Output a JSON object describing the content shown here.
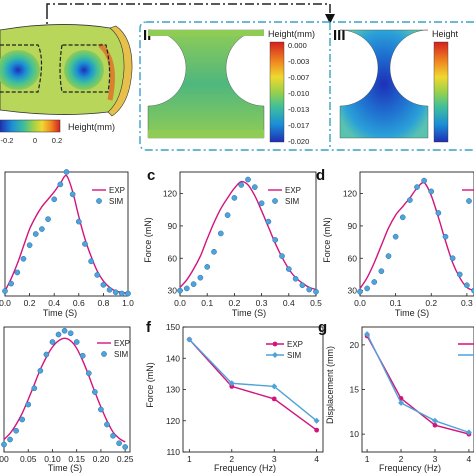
{
  "colors": {
    "exp": "#d4147a",
    "sim": "#4fa3d9",
    "sim_edge": "#1f6fb0",
    "frame": "#3aa0c8"
  },
  "top": {
    "colorbar_h": {
      "label": "Height(mm)",
      "ticks": [
        "-0.2",
        "0",
        "0.2"
      ]
    },
    "panel_II": {
      "numeral": "II",
      "label": "Height(mm)",
      "ticks": [
        "0.000",
        "-0.003",
        "-0.007",
        "-0.010",
        "-0.013",
        "-0.017",
        "-0.020"
      ]
    },
    "panel_III": {
      "numeral": "III",
      "label": "Height"
    }
  },
  "panels": [
    {
      "letter": "",
      "ylabel": "",
      "xlabel": "Time (S)",
      "series": [
        "EXP",
        "SIM"
      ]
    },
    {
      "letter": "c",
      "ylabel": "Force (mN)",
      "xlabel": "Time (S)",
      "series": [
        "EXP",
        "SIM"
      ]
    },
    {
      "letter": "d",
      "ylabel": "Force (mN)",
      "xlabel": "Time (S)",
      "series": [
        "",
        ""
      ]
    },
    {
      "letter": "",
      "ylabel": "",
      "xlabel": "Time (S)",
      "series": [
        "EXP",
        "SIM"
      ]
    },
    {
      "letter": "f",
      "ylabel": "Force (mN)",
      "xlabel": "Frequency (Hz)",
      "series": [
        "EXP",
        "SIM"
      ]
    },
    {
      "letter": "g",
      "ylabel": "Displacement (mm)",
      "xlabel": "Frequency (Hz)",
      "series": [
        "",
        ""
      ]
    }
  ],
  "chart_data": [
    {
      "type": "line",
      "panel": "b",
      "xlabel": "Time (S)",
      "ylabel": "",
      "xticks": [
        0.0,
        0.2,
        0.4,
        0.6,
        0.8,
        1.0
      ],
      "xtick_labels": [
        "0.0",
        "0.2",
        "0.4",
        "0.6",
        "0.8",
        "1.0"
      ],
      "xlim": [
        0.0,
        1.0
      ],
      "ylim": [
        0,
        100
      ],
      "yticks": [],
      "legend": "top-right",
      "series": [
        {
          "name": "EXP",
          "kind": "line",
          "x": [
            0.0,
            0.05,
            0.1,
            0.15,
            0.2,
            0.25,
            0.3,
            0.35,
            0.4,
            0.45,
            0.5,
            0.55,
            0.6,
            0.65,
            0.7,
            0.75,
            0.8,
            0.85,
            0.9,
            0.95,
            1.0
          ],
          "y": [
            4,
            14,
            26,
            40,
            54,
            64,
            72,
            78,
            84,
            91,
            97,
            84,
            64,
            46,
            32,
            20,
            12,
            7,
            4,
            3,
            2
          ]
        },
        {
          "name": "SIM",
          "kind": "scatter",
          "x": [
            0.0,
            0.05,
            0.1,
            0.15,
            0.2,
            0.25,
            0.3,
            0.35,
            0.4,
            0.45,
            0.5,
            0.55,
            0.6,
            0.65,
            0.7,
            0.75,
            0.8,
            0.85,
            0.9,
            0.95,
            1.0
          ],
          "y": [
            4,
            10,
            19,
            30,
            41,
            50,
            54,
            62,
            78,
            90,
            100,
            82,
            60,
            42,
            28,
            17,
            9,
            5,
            3,
            2,
            2
          ]
        }
      ]
    },
    {
      "type": "line",
      "panel": "c",
      "xlabel": "Time (S)",
      "ylabel": "Force (mN)",
      "xticks": [
        0.0,
        0.1,
        0.2,
        0.3,
        0.4,
        0.5
      ],
      "xtick_labels": [
        "0.0",
        "0.1",
        "0.2",
        "0.3",
        "0.4",
        "0.5"
      ],
      "xlim": [
        0.0,
        0.5
      ],
      "ylim": [
        25,
        140
      ],
      "yticks": [
        30,
        60,
        90,
        120
      ],
      "legend": "top-right",
      "series": [
        {
          "name": "EXP",
          "kind": "line",
          "x": [
            0.0,
            0.025,
            0.05,
            0.075,
            0.1,
            0.125,
            0.15,
            0.175,
            0.2,
            0.225,
            0.25,
            0.275,
            0.3,
            0.325,
            0.35,
            0.375,
            0.4,
            0.425,
            0.45,
            0.475,
            0.5
          ],
          "y": [
            33,
            40,
            50,
            62,
            78,
            93,
            106,
            116,
            125,
            131,
            128,
            118,
            104,
            89,
            74,
            61,
            50,
            42,
            37,
            33,
            31
          ]
        },
        {
          "name": "SIM",
          "kind": "scatter",
          "x": [
            0.0,
            0.025,
            0.05,
            0.075,
            0.1,
            0.125,
            0.15,
            0.175,
            0.2,
            0.225,
            0.25,
            0.275,
            0.3,
            0.325,
            0.35,
            0.375,
            0.4,
            0.425,
            0.45,
            0.475,
            0.5
          ],
          "y": [
            30,
            32,
            36,
            42,
            52,
            66,
            83,
            100,
            116,
            128,
            133,
            126,
            111,
            94,
            77,
            62,
            50,
            41,
            35,
            31,
            29
          ]
        }
      ]
    },
    {
      "type": "line",
      "panel": "d",
      "xlabel": "Time (S)",
      "ylabel": "Force (mN)",
      "xticks": [
        0.0,
        0.1,
        0.2,
        0.3
      ],
      "xtick_labels": [
        "0.0",
        "0.1",
        "0.2",
        "0.3"
      ],
      "xlim": [
        0.0,
        0.32
      ],
      "ylim": [
        25,
        140
      ],
      "yticks": [
        30,
        60,
        90,
        120
      ],
      "legend": "top-right",
      "series": [
        {
          "name": "",
          "kind": "line",
          "x": [
            0.0,
            0.02,
            0.04,
            0.06,
            0.08,
            0.1,
            0.12,
            0.14,
            0.16,
            0.18,
            0.2,
            0.22,
            0.24,
            0.26,
            0.28,
            0.3,
            0.32
          ],
          "y": [
            32,
            42,
            56,
            72,
            88,
            100,
            108,
            116,
            125,
            130,
            118,
            98,
            76,
            56,
            42,
            33,
            30
          ]
        },
        {
          "name": "",
          "kind": "scatter",
          "x": [
            0.0,
            0.02,
            0.04,
            0.06,
            0.08,
            0.1,
            0.12,
            0.14,
            0.16,
            0.18,
            0.2,
            0.22,
            0.24,
            0.26,
            0.28,
            0.3,
            0.32
          ],
          "y": [
            29,
            32,
            38,
            48,
            62,
            80,
            98,
            114,
            126,
            132,
            122,
            102,
            80,
            60,
            45,
            35,
            30
          ]
        }
      ]
    },
    {
      "type": "line",
      "panel": "e",
      "xlabel": "Time (S)",
      "ylabel": "",
      "xticks": [
        0.0,
        0.05,
        0.1,
        0.15,
        0.2,
        0.25
      ],
      "xtick_labels": [
        "00",
        "0.05",
        "0.10",
        "0.15",
        "0.20",
        "0.25"
      ],
      "xlim": [
        0.0,
        0.26
      ],
      "ylim": [
        0,
        100
      ],
      "yticks": [],
      "legend": "top-right",
      "series": [
        {
          "name": "EXP",
          "kind": "line",
          "x": [
            0.0,
            0.0125,
            0.025,
            0.0375,
            0.05,
            0.0625,
            0.075,
            0.0875,
            0.1,
            0.1125,
            0.125,
            0.1375,
            0.15,
            0.1625,
            0.175,
            0.1875,
            0.2,
            0.2125,
            0.225,
            0.2375,
            0.25
          ],
          "y": [
            10,
            15,
            22,
            31,
            42,
            54,
            66,
            76,
            84,
            89,
            91,
            89,
            83,
            73,
            61,
            48,
            36,
            25,
            16,
            11,
            8
          ]
        },
        {
          "name": "SIM",
          "kind": "scatter",
          "x": [
            0.0,
            0.0125,
            0.025,
            0.0375,
            0.05,
            0.0625,
            0.075,
            0.0875,
            0.1,
            0.1125,
            0.125,
            0.1375,
            0.15,
            0.1625,
            0.175,
            0.1875,
            0.2,
            0.2125,
            0.225,
            0.2375,
            0.25
          ],
          "y": [
            6,
            10,
            17,
            26,
            38,
            51,
            65,
            78,
            88,
            94,
            97,
            95,
            88,
            77,
            63,
            48,
            34,
            22,
            13,
            7,
            4
          ]
        }
      ]
    },
    {
      "type": "line",
      "panel": "f",
      "xlabel": "Frequency (Hz)",
      "ylabel": "Force (mN)",
      "xticks": [
        1,
        2,
        3,
        4
      ],
      "xtick_labels": [
        "1",
        "2",
        "3",
        "4"
      ],
      "xlim": [
        0.85,
        4.15
      ],
      "ylim": [
        110,
        150
      ],
      "yticks": [
        110,
        120,
        130,
        140,
        150
      ],
      "legend": "top-right",
      "series": [
        {
          "name": "EXP",
          "kind": "line+marker",
          "x": [
            1,
            2,
            3,
            4
          ],
          "y": [
            146,
            131,
            127,
            117
          ]
        },
        {
          "name": "SIM",
          "kind": "line+marker",
          "x": [
            1,
            2,
            3,
            4
          ],
          "y": [
            146,
            132,
            131,
            120
          ]
        }
      ]
    },
    {
      "type": "line",
      "panel": "g",
      "xlabel": "Frequency (Hz)",
      "ylabel": "Displacement (mm)",
      "xticks": [
        1,
        2,
        3,
        4
      ],
      "xtick_labels": [
        "1",
        "2",
        "3",
        "4"
      ],
      "xlim": [
        0.85,
        4.15
      ],
      "ylim": [
        8,
        22
      ],
      "yticks": [
        10,
        15,
        20
      ],
      "legend": "top-right",
      "series": [
        {
          "name": "",
          "kind": "line+marker",
          "x": [
            1,
            2,
            3,
            4
          ],
          "y": [
            21,
            14,
            11,
            10
          ]
        },
        {
          "name": "",
          "kind": "line+marker",
          "x": [
            1,
            2,
            3,
            4
          ],
          "y": [
            21.2,
            13.5,
            11.5,
            10.2
          ]
        }
      ]
    }
  ]
}
